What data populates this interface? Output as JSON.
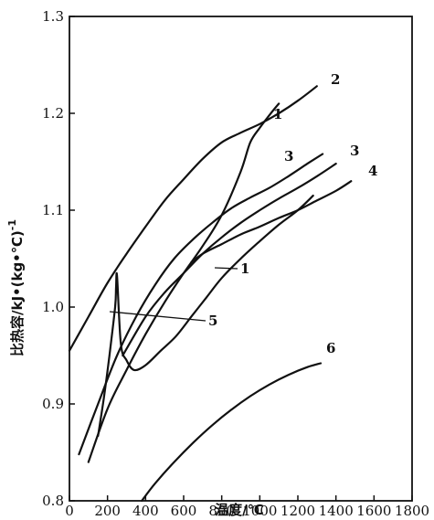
{
  "chart_data": {
    "type": "line",
    "title": "",
    "xlabel": "温度/℃",
    "ylabel": "比热容/kJ•(kg•℃)",
    "ylabel_superscript": "-1",
    "xlim": [
      0,
      1800
    ],
    "ylim": [
      0.8,
      1.3
    ],
    "x_ticks": [
      0,
      200,
      400,
      600,
      800,
      1000,
      1200,
      1400,
      1600,
      1800
    ],
    "x_tick_labels": [
      "0",
      "200",
      "400",
      "600",
      "800",
      "1000",
      "1200",
      "1400",
      "1600",
      "1800"
    ],
    "y_ticks": [
      0.8,
      0.9,
      1.0,
      1.1,
      1.2,
      1.3
    ],
    "y_tick_labels": [
      "0.8",
      "0.9",
      "1.0",
      "1.1",
      "1.2",
      "1.3"
    ],
    "grid": false,
    "legend": "none",
    "series": [
      {
        "label": "1",
        "x": [
          100,
          200,
          300,
          400,
          500,
          600,
          700,
          800,
          900,
          950,
          1000,
          1050,
          1100
        ],
        "y": [
          0.84,
          0.895,
          0.935,
          0.972,
          1.005,
          1.035,
          1.063,
          1.095,
          1.14,
          1.17,
          1.185,
          1.198,
          1.21
        ]
      },
      {
        "label": "2",
        "x": [
          0,
          100,
          200,
          300,
          400,
          500,
          600,
          700,
          800,
          900,
          1000,
          1100,
          1200,
          1300
        ],
        "y": [
          0.955,
          0.99,
          1.025,
          1.055,
          1.083,
          1.11,
          1.132,
          1.153,
          1.17,
          1.18,
          1.189,
          1.2,
          1.213,
          1.228
        ]
      },
      {
        "label": "3",
        "x": [
          50,
          150,
          250,
          350,
          450,
          550,
          650,
          750,
          850,
          950,
          1050,
          1150,
          1250,
          1330
        ],
        "y": [
          0.848,
          0.9,
          0.95,
          0.99,
          1.023,
          1.05,
          1.07,
          1.087,
          1.102,
          1.113,
          1.123,
          1.135,
          1.148,
          1.158
        ]
      },
      {
        "label": "3",
        "x": [
          280,
          400,
          500,
          600,
          700,
          800,
          900,
          1000,
          1100,
          1200,
          1300,
          1400
        ],
        "y": [
          0.95,
          0.99,
          1.015,
          1.035,
          1.055,
          1.072,
          1.087,
          1.1,
          1.112,
          1.123,
          1.135,
          1.148
        ]
      },
      {
        "label": "4",
        "x": [
          640,
          700,
          800,
          900,
          1000,
          1100,
          1200,
          1300,
          1400,
          1480
        ],
        "y": [
          1.046,
          1.055,
          1.065,
          1.075,
          1.083,
          1.092,
          1.1,
          1.11,
          1.12,
          1.13
        ]
      },
      {
        "label": "5",
        "x": [
          150,
          180,
          210,
          240,
          245,
          250,
          270,
          300,
          340,
          400,
          480,
          560,
          640,
          720,
          800,
          900,
          1000,
          1100,
          1200,
          1280
        ],
        "y": [
          0.867,
          0.905,
          0.95,
          1.0,
          1.02,
          1.032,
          0.962,
          0.945,
          0.935,
          0.94,
          0.955,
          0.97,
          0.99,
          1.01,
          1.03,
          1.05,
          1.068,
          1.085,
          1.1,
          1.115
        ]
      },
      {
        "label": "6",
        "x": [
          380,
          450,
          550,
          650,
          750,
          850,
          950,
          1050,
          1150,
          1250,
          1320
        ],
        "y": [
          0.8,
          0.818,
          0.84,
          0.86,
          0.878,
          0.894,
          0.908,
          0.92,
          0.93,
          0.938,
          0.942
        ]
      }
    ],
    "annotations": [
      {
        "text": "1",
        "series": 0
      },
      {
        "text": "2",
        "series": 1
      },
      {
        "text": "3",
        "series": 2
      },
      {
        "text": "3",
        "series": 3
      },
      {
        "text": "4",
        "series": 4
      },
      {
        "text": "1",
        "series": 0
      },
      {
        "text": "5",
        "series": 5
      },
      {
        "text": "6",
        "series": 6
      }
    ]
  }
}
